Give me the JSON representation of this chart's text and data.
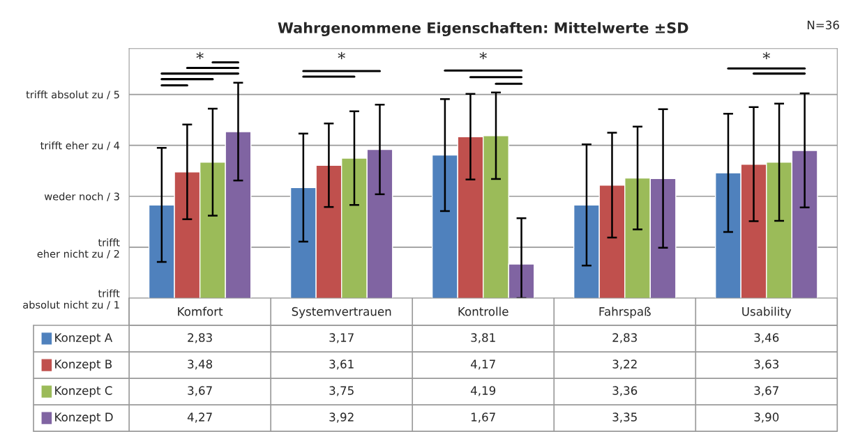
{
  "chart_data": {
    "type": "bar",
    "title": "Wahrgenommene Eigenschaften: Mittelwerte ±SD",
    "annotations": [
      "N=36",
      "*",
      "*",
      "*",
      "*"
    ],
    "categories": [
      "Komfort",
      "Systemvertrauen",
      "Kontrolle",
      "Fahrspaß",
      "Usability"
    ],
    "series": [
      {
        "name": "Konzept A",
        "color": "#4f81bd",
        "values": [
          2.83,
          3.17,
          3.81,
          2.83,
          3.46
        ],
        "value_labels": [
          "2,83",
          "3,17",
          "3,81",
          "2,83",
          "3,46"
        ],
        "errors": [
          1.12,
          1.06,
          1.1,
          1.19,
          1.16
        ]
      },
      {
        "name": "Konzept B",
        "color": "#c0504d",
        "values": [
          3.48,
          3.61,
          4.17,
          3.22,
          3.63
        ],
        "value_labels": [
          "3,48",
          "3,61",
          "4,17",
          "3,22",
          "3,63"
        ],
        "errors": [
          0.93,
          0.82,
          0.84,
          1.03,
          1.12
        ]
      },
      {
        "name": "Konzept C",
        "color": "#9bbb59",
        "values": [
          3.67,
          3.75,
          4.19,
          3.36,
          3.67
        ],
        "value_labels": [
          "3,67",
          "3,75",
          "4,19",
          "3,36",
          "3,67"
        ],
        "errors": [
          1.05,
          0.92,
          0.85,
          1.01,
          1.15
        ]
      },
      {
        "name": "Konzept D",
        "color": "#8064a2",
        "values": [
          4.27,
          3.92,
          1.67,
          3.35,
          3.9
        ],
        "value_labels": [
          "4,27",
          "3,92",
          "1,67",
          "3,35",
          "3,90"
        ],
        "errors": [
          0.96,
          0.88,
          [
            1,
            2.57
          ],
          1.36,
          1.12
        ]
      }
    ],
    "ylim": [
      1,
      5.9
    ],
    "yticks": [
      {
        "value": 1,
        "label": "trifft\nabsolut nicht zu / 1"
      },
      {
        "value": 2,
        "label": "trifft\neher nicht zu / 2"
      },
      {
        "value": 3,
        "label": "weder noch / 3"
      },
      {
        "value": 4,
        "label": "trifft eher zu / 4"
      },
      {
        "value": 5,
        "label": "trifft absolut zu / 5"
      }
    ],
    "grid": "y",
    "legend": "bottom"
  }
}
